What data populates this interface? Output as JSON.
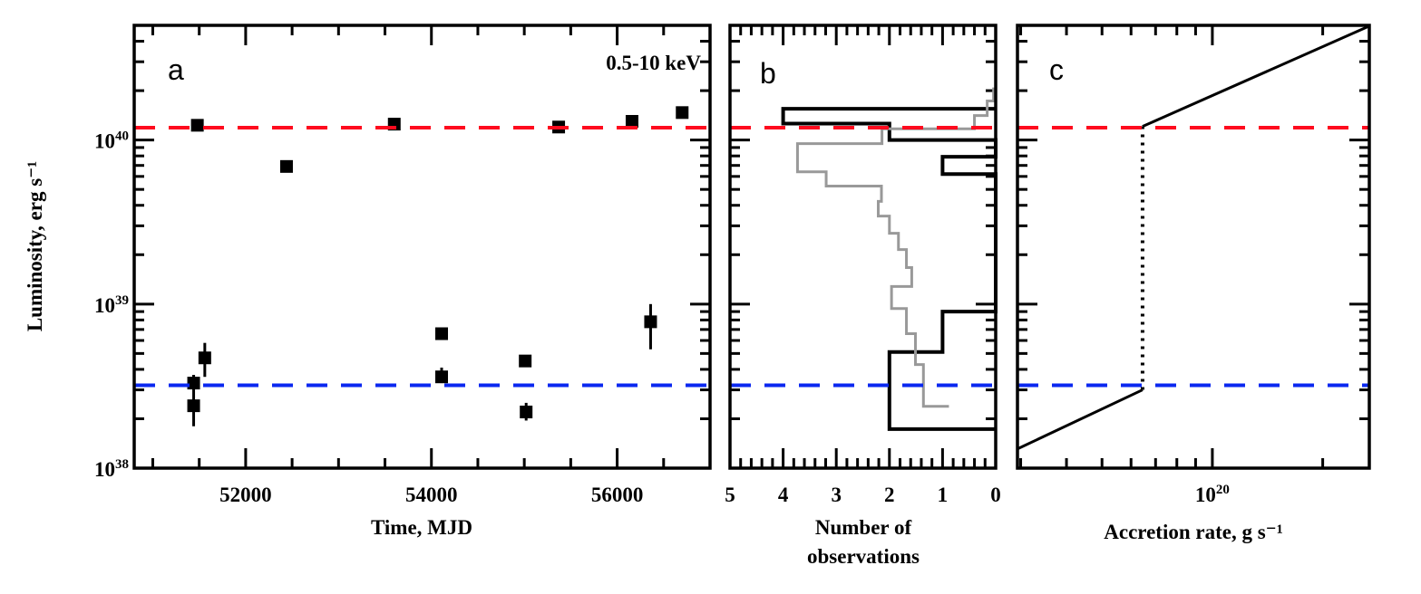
{
  "chart_data": [
    {
      "panel": "a",
      "type": "scatter",
      "annotation": "0.5-10 keV",
      "xlabel": "Time, MJD",
      "ylabel": "Luminosity, erg s⁻¹",
      "xlim": [
        50800,
        57000
      ],
      "ylim": [
        1e+38,
        5e+40
      ],
      "yscale": "log",
      "xticks": [
        52000,
        54000,
        56000
      ],
      "xtick_labels": [
        "52000",
        "54000",
        "56000"
      ],
      "yticks": [
        1e+38,
        1e+39,
        1e+40
      ],
      "ytick_labels": [
        {
          "base": "10",
          "exp": "38"
        },
        {
          "base": "10",
          "exp": "39"
        },
        {
          "base": "10",
          "exp": "40"
        }
      ],
      "points": [
        {
          "x": 51480,
          "y": 1.23e+40
        },
        {
          "x": 52440,
          "y": 6.9e+39
        },
        {
          "x": 53600,
          "y": 1.25e+40
        },
        {
          "x": 55370,
          "y": 1.2e+40
        },
        {
          "x": 56160,
          "y": 1.3e+40
        },
        {
          "x": 56700,
          "y": 1.47e+40
        },
        {
          "x": 51440,
          "y": 3.3e+38,
          "ylo": 3e+38,
          "yhi": 3.7e+38
        },
        {
          "x": 51440,
          "y": 2.4e+38,
          "ylo": 1.8e+38,
          "yhi": 3.7e+38
        },
        {
          "x": 51560,
          "y": 4.7e+38,
          "ylo": 3.6e+38,
          "yhi": 5.8e+38
        },
        {
          "x": 54110,
          "y": 6.6e+38,
          "ylo": 6.2e+38,
          "yhi": 7e+38
        },
        {
          "x": 54110,
          "y": 3.6e+38,
          "ylo": 3.3e+38,
          "yhi": 4.1e+38
        },
        {
          "x": 55010,
          "y": 4.5e+38
        },
        {
          "x": 55020,
          "y": 2.2e+38,
          "ylo": 1.95e+38,
          "yhi": 2.5e+38
        },
        {
          "x": 56360,
          "y": 7.8e+38,
          "ylo": 5.3e+38,
          "yhi": 1e+39
        }
      ],
      "hlines": [
        {
          "y": 1.19e+40,
          "color": "#ff0a1e",
          "style": "dashed"
        },
        {
          "y": 3.2e+38,
          "color": "#0a28f0",
          "style": "dashed"
        }
      ]
    },
    {
      "panel": "b",
      "type": "histogram",
      "xlabel": [
        "Number of",
        "observations"
      ],
      "xlim": [
        5,
        0
      ],
      "ylim": [
        1e+38,
        5e+40
      ],
      "yscale": "log",
      "xticks": [
        5,
        4,
        3,
        2,
        1,
        0
      ],
      "xtick_labels": [
        "5",
        "4",
        "3",
        "2",
        "1",
        "0"
      ],
      "bins": [
        {
          "lo": 1.26e+40,
          "hi": 1.55e+40,
          "count": 4
        },
        {
          "lo": 1e+40,
          "hi": 1.26e+40,
          "count": 2
        },
        {
          "lo": 6.2e+39,
          "hi": 7.9e+39,
          "count": 1
        },
        {
          "lo": 5.1e+38,
          "hi": 9e+38,
          "count": 1
        },
        {
          "lo": 1.73e+38,
          "hi": 5.1e+38,
          "count": 2
        }
      ],
      "gray_curve": {
        "color": "#999999",
        "steps": [
          [
            0,
            3e+40
          ],
          [
            0,
            2.05e+40
          ],
          [
            0.04,
            2.05e+40
          ],
          [
            0.04,
            1.73e+40
          ],
          [
            0.16,
            1.73e+40
          ],
          [
            0.16,
            1.41e+40
          ],
          [
            0.4,
            1.41e+40
          ],
          [
            0.4,
            1.17e+40
          ],
          [
            2.14,
            1.17e+40
          ],
          [
            2.14,
            9.5e+39
          ],
          [
            3.73,
            9.5e+39
          ],
          [
            3.73,
            6.4e+39
          ],
          [
            3.19,
            6.4e+39
          ],
          [
            3.19,
            5.24e+39
          ],
          [
            2.15,
            5.24e+39
          ],
          [
            2.15,
            4.23e+39
          ],
          [
            2.21,
            4.23e+39
          ],
          [
            2.21,
            3.44e+39
          ],
          [
            2.0,
            3.44e+39
          ],
          [
            2.0,
            2.7e+39
          ],
          [
            1.83,
            2.7e+39
          ],
          [
            1.83,
            2.15e+39
          ],
          [
            1.68,
            2.15e+39
          ],
          [
            1.68,
            1.67e+39
          ],
          [
            1.58,
            1.67e+39
          ],
          [
            1.58,
            1.28e+39
          ],
          [
            1.96,
            1.28e+39
          ],
          [
            1.96,
            9.4e+38
          ],
          [
            1.68,
            9.4e+38
          ],
          [
            1.68,
            6.6e+38
          ],
          [
            1.51,
            6.6e+38
          ],
          [
            1.51,
            4.28e+38
          ],
          [
            1.36,
            4.28e+38
          ],
          [
            1.36,
            2.38e+38
          ],
          [
            0.88,
            2.38e+38
          ]
        ]
      },
      "hlines": [
        {
          "y": 1.19e+40,
          "color": "#ff0a1e",
          "style": "dashed"
        },
        {
          "y": 3.2e+38,
          "color": "#0a28f0",
          "style": "dashed"
        }
      ]
    },
    {
      "panel": "c",
      "type": "line",
      "xlabel": "Accretion rate, g s⁻¹",
      "xlim": [
        2.94e+19,
        2.68e+20
      ],
      "xscale": "log",
      "ylim": [
        1e+38,
        5e+40
      ],
      "yscale": "log",
      "xticks": [
        1e+20
      ],
      "xtick_labels": [
        {
          "base": "10",
          "exp": "20"
        }
      ],
      "segments": [
        {
          "style": "solid",
          "points": [
            [
              2.94e+19,
              1.31e+38
            ],
            [
              6.45e+19,
              3e+38
            ]
          ]
        },
        {
          "style": "dotted",
          "points": [
            [
              6.45e+19,
              3e+38
            ],
            [
              6.45e+19,
              1.21e+40
            ]
          ]
        },
        {
          "style": "solid",
          "points": [
            [
              6.45e+19,
              1.21e+40
            ],
            [
              2.68e+20,
              4.95e+40
            ]
          ]
        }
      ],
      "hlines": [
        {
          "y": 1.19e+40,
          "color": "#ff0a1e",
          "style": "dashed"
        },
        {
          "y": 3.2e+38,
          "color": "#0a28f0",
          "style": "dashed"
        }
      ]
    }
  ]
}
